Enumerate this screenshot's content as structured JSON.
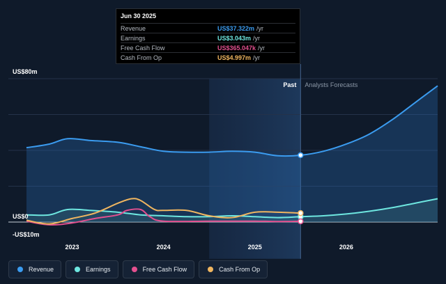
{
  "tooltip": {
    "date": "Jun 30 2025",
    "rows": [
      {
        "label": "Revenue",
        "value": "US$37.322m",
        "unit": "/yr",
        "color": "#3b9cf0"
      },
      {
        "label": "Earnings",
        "value": "US$3.043m",
        "unit": "/yr",
        "color": "#6ee7e0"
      },
      {
        "label": "Free Cash Flow",
        "value": "US$365.047k",
        "unit": "/yr",
        "color": "#e4508f"
      },
      {
        "label": "Cash From Op",
        "value": "US$4.997m",
        "unit": "/yr",
        "color": "#f0b660"
      }
    ]
  },
  "legend": [
    {
      "label": "Revenue",
      "color": "#3b9cf0"
    },
    {
      "label": "Earnings",
      "color": "#6ee7e0"
    },
    {
      "label": "Free Cash Flow",
      "color": "#e4508f"
    },
    {
      "label": "Cash From Op",
      "color": "#f0b660"
    }
  ],
  "chart_data": {
    "type": "line",
    "ylabels": {
      "top": "US$80m",
      "zero": "US$0",
      "bottom": "-US$10m"
    },
    "ylim": [
      -10,
      80
    ],
    "xlim": [
      2022.5,
      2027.0
    ],
    "xticks": [
      {
        "label": "2023",
        "x": 2023.0
      },
      {
        "label": "2024",
        "x": 2024.0
      },
      {
        "label": "2025",
        "x": 2025.0
      },
      {
        "label": "2026",
        "x": 2026.0
      }
    ],
    "past_label": "Past",
    "forecast_label": "Analysts Forecasts",
    "highlight_start": 2024.5,
    "divider_x": 2025.5,
    "grid": true,
    "series": [
      {
        "name": "Revenue",
        "color": "#3b9cf0",
        "fill": true,
        "x": [
          2022.5,
          2022.75,
          2022.95,
          2023.2,
          2023.5,
          2023.75,
          2024.0,
          2024.25,
          2024.5,
          2024.75,
          2025.0,
          2025.25,
          2025.5,
          2025.75,
          2026.0,
          2026.25,
          2026.5,
          2026.75,
          2027.0
        ],
        "y": [
          41.5,
          43.5,
          46.5,
          45.5,
          44.5,
          42.0,
          39.5,
          39.0,
          39.0,
          39.5,
          39.0,
          37.0,
          37.3,
          39.5,
          43.5,
          49.0,
          57.0,
          66.5,
          76.0
        ]
      },
      {
        "name": "Earnings",
        "color": "#6ee7e0",
        "fill": true,
        "x": [
          2022.5,
          2022.75,
          2022.95,
          2023.2,
          2023.5,
          2023.75,
          2024.0,
          2024.25,
          2024.5,
          2024.75,
          2025.0,
          2025.25,
          2025.5,
          2025.75,
          2026.0,
          2026.25,
          2026.5,
          2026.75,
          2027.0
        ],
        "y": [
          4.0,
          4.0,
          7.0,
          6.5,
          5.5,
          4.0,
          3.5,
          3.0,
          3.0,
          3.5,
          3.0,
          2.5,
          3.0,
          3.5,
          4.5,
          6.0,
          8.0,
          10.5,
          13.0
        ]
      },
      {
        "name": "Free Cash Flow",
        "color": "#e4508f",
        "fill": false,
        "x": [
          2022.5,
          2022.75,
          2023.0,
          2023.25,
          2023.5,
          2023.6,
          2023.75,
          2023.85,
          2024.0,
          2024.5,
          2025.0,
          2025.25,
          2025.5
        ],
        "y": [
          0.5,
          -1.5,
          -0.5,
          2.0,
          4.0,
          6.5,
          7.0,
          3.0,
          0.5,
          0.5,
          0.5,
          0.3,
          0.4
        ]
      },
      {
        "name": "Cash From Op",
        "color": "#f0b660",
        "fill": false,
        "x": [
          2022.5,
          2022.75,
          2023.0,
          2023.25,
          2023.5,
          2023.65,
          2023.75,
          2023.9,
          2024.0,
          2024.25,
          2024.5,
          2024.75,
          2025.0,
          2025.25,
          2025.5
        ],
        "y": [
          1.0,
          -1.0,
          2.0,
          5.0,
          10.5,
          13.0,
          12.0,
          7.0,
          6.5,
          6.5,
          3.5,
          2.5,
          5.5,
          5.5,
          5.0
        ]
      }
    ]
  }
}
